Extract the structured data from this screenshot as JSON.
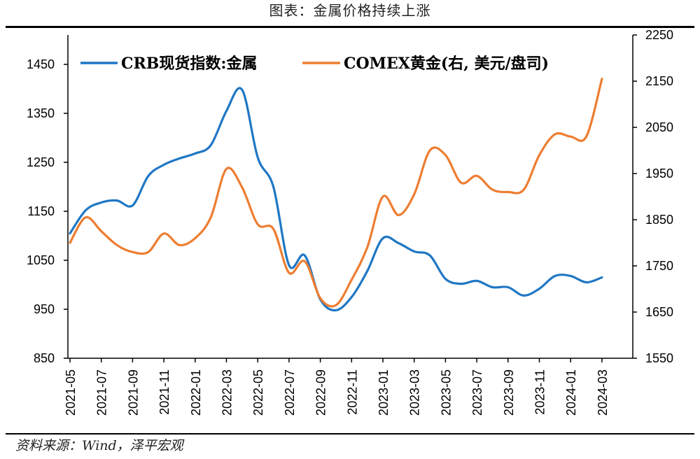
{
  "title": "图表：金属价格持续上涨",
  "source": "资料来源：Wind，泽平宏观",
  "chart_data": {
    "type": "line",
    "x": [
      "2021-05",
      "2021-06",
      "2021-07",
      "2021-08",
      "2021-09",
      "2021-10",
      "2021-11",
      "2021-12",
      "2022-01",
      "2022-02",
      "2022-03",
      "2022-04",
      "2022-05",
      "2022-06",
      "2022-07",
      "2022-08",
      "2022-09",
      "2022-10",
      "2022-11",
      "2022-12",
      "2023-01",
      "2023-02",
      "2023-03",
      "2023-04",
      "2023-05",
      "2023-06",
      "2023-07",
      "2023-08",
      "2023-09",
      "2023-10",
      "2023-11",
      "2023-12",
      "2024-01",
      "2024-02",
      "2024-03"
    ],
    "x_tick_labels": [
      "2021-05",
      "2021-07",
      "2021-09",
      "2021-11",
      "2022-01",
      "2022-03",
      "2022-05",
      "2022-07",
      "2022-09",
      "2022-11",
      "2023-01",
      "2023-03",
      "2023-05",
      "2023-07",
      "2023-09",
      "2023-11",
      "2024-01",
      "2024-03"
    ],
    "y_left": {
      "range": [
        850,
        1500
      ],
      "ticks": [
        "850",
        "950",
        "1050",
        "1150",
        "1250",
        "1350",
        "1450"
      ]
    },
    "y_right": {
      "range": [
        1550,
        2250
      ],
      "ticks": [
        "1550",
        "1650",
        "1750",
        "1850",
        "1950",
        "2050",
        "2150",
        "2250"
      ]
    },
    "series": [
      {
        "name": "CRB现货指数:金属",
        "axis": "left",
        "color": "#1f77c4",
        "values": [
          1105,
          1152,
          1168,
          1172,
          1162,
          1222,
          1245,
          1258,
          1268,
          1285,
          1355,
          1398,
          1260,
          1200,
          1040,
          1060,
          970,
          948,
          975,
          1028,
          1095,
          1085,
          1068,
          1060,
          1012,
          1002,
          1008,
          995,
          995,
          978,
          992,
          1018,
          1018,
          1005,
          1015
        ]
      },
      {
        "name": "COMEX黄金(右, 美元/盘司)",
        "axis": "right",
        "color": "#ed7d31",
        "values": [
          1800,
          1855,
          1825,
          1795,
          1780,
          1780,
          1820,
          1795,
          1810,
          1855,
          1960,
          1920,
          1840,
          1830,
          1735,
          1760,
          1680,
          1665,
          1720,
          1790,
          1900,
          1860,
          1905,
          2000,
          1990,
          1930,
          1945,
          1915,
          1910,
          1915,
          1990,
          2035,
          2030,
          2030,
          2155
        ]
      }
    ]
  }
}
